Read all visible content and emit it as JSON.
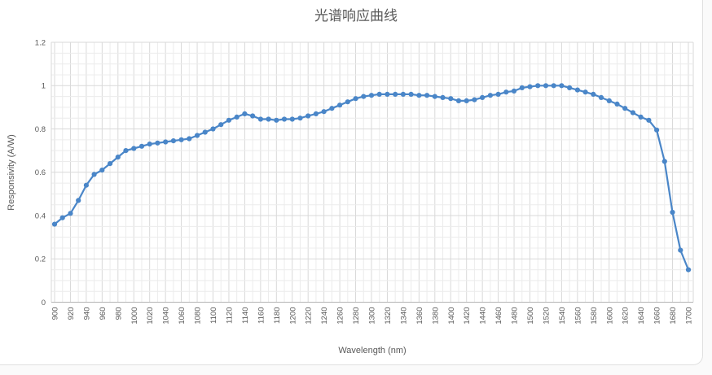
{
  "chart_data": {
    "type": "line",
    "title": "光谱响应曲线",
    "xlabel": "Wavelength (nm)",
    "ylabel": "Responsivity (A/W)",
    "xlim": [
      900,
      1700
    ],
    "ylim": [
      0,
      1.2
    ],
    "x_minor_step": 10,
    "x_major_step": 20,
    "y_minor_step": 0.05,
    "y_major_step": 0.2,
    "grid": "major+minor",
    "legend": "none",
    "line_color": "#4a86c8",
    "marker": "circle",
    "x_tick_labels": [
      "900",
      "920",
      "940",
      "960",
      "980",
      "1000",
      "1020",
      "1040",
      "1060",
      "1080",
      "1100",
      "1120",
      "1140",
      "1160",
      "1180",
      "1200",
      "1220",
      "1240",
      "1260",
      "1280",
      "1300",
      "1320",
      "1340",
      "1360",
      "1380",
      "1400",
      "1420",
      "1440",
      "1460",
      "1480",
      "1500",
      "1520",
      "1540",
      "1560",
      "1580",
      "1600",
      "1620",
      "1640",
      "1660",
      "1680",
      "1700"
    ],
    "y_tick_labels": [
      "0",
      "0.2",
      "0.4",
      "0.6",
      "0.8",
      "1",
      "1.2"
    ],
    "x": [
      900,
      910,
      920,
      930,
      940,
      950,
      960,
      970,
      980,
      990,
      1000,
      1010,
      1020,
      1030,
      1040,
      1050,
      1060,
      1070,
      1080,
      1090,
      1100,
      1110,
      1120,
      1130,
      1140,
      1150,
      1160,
      1170,
      1180,
      1190,
      1200,
      1210,
      1220,
      1230,
      1240,
      1250,
      1260,
      1270,
      1280,
      1290,
      1300,
      1310,
      1320,
      1330,
      1340,
      1350,
      1360,
      1370,
      1380,
      1390,
      1400,
      1410,
      1420,
      1430,
      1440,
      1450,
      1460,
      1470,
      1480,
      1490,
      1500,
      1510,
      1520,
      1530,
      1540,
      1550,
      1560,
      1570,
      1580,
      1590,
      1600,
      1610,
      1620,
      1630,
      1640,
      1650,
      1660,
      1670,
      1680,
      1690,
      1700
    ],
    "series": [
      {
        "name": "Responsivity",
        "values": [
          0.36,
          0.39,
          0.41,
          0.47,
          0.54,
          0.59,
          0.61,
          0.64,
          0.67,
          0.7,
          0.71,
          0.72,
          0.73,
          0.735,
          0.74,
          0.745,
          0.75,
          0.755,
          0.77,
          0.785,
          0.8,
          0.82,
          0.84,
          0.855,
          0.87,
          0.86,
          0.845,
          0.845,
          0.84,
          0.845,
          0.845,
          0.85,
          0.86,
          0.87,
          0.88,
          0.895,
          0.91,
          0.925,
          0.94,
          0.95,
          0.955,
          0.96,
          0.96,
          0.96,
          0.96,
          0.96,
          0.955,
          0.955,
          0.95,
          0.945,
          0.94,
          0.93,
          0.93,
          0.935,
          0.945,
          0.955,
          0.96,
          0.97,
          0.975,
          0.99,
          0.995,
          1.0,
          1.0,
          1.0,
          1.0,
          0.99,
          0.98,
          0.97,
          0.96,
          0.945,
          0.93,
          0.915,
          0.895,
          0.875,
          0.855,
          0.84,
          0.795,
          0.65,
          0.415,
          0.24,
          0.15
        ]
      }
    ],
    "colors": {
      "title_text": "#595959",
      "axis_text": "#595959",
      "grid_minor": "#ececec",
      "grid_major": "#d9d9d9",
      "axis_line": "#b3b3b3",
      "panel_background": "#ffffff",
      "page_background": "#fafafa"
    }
  }
}
